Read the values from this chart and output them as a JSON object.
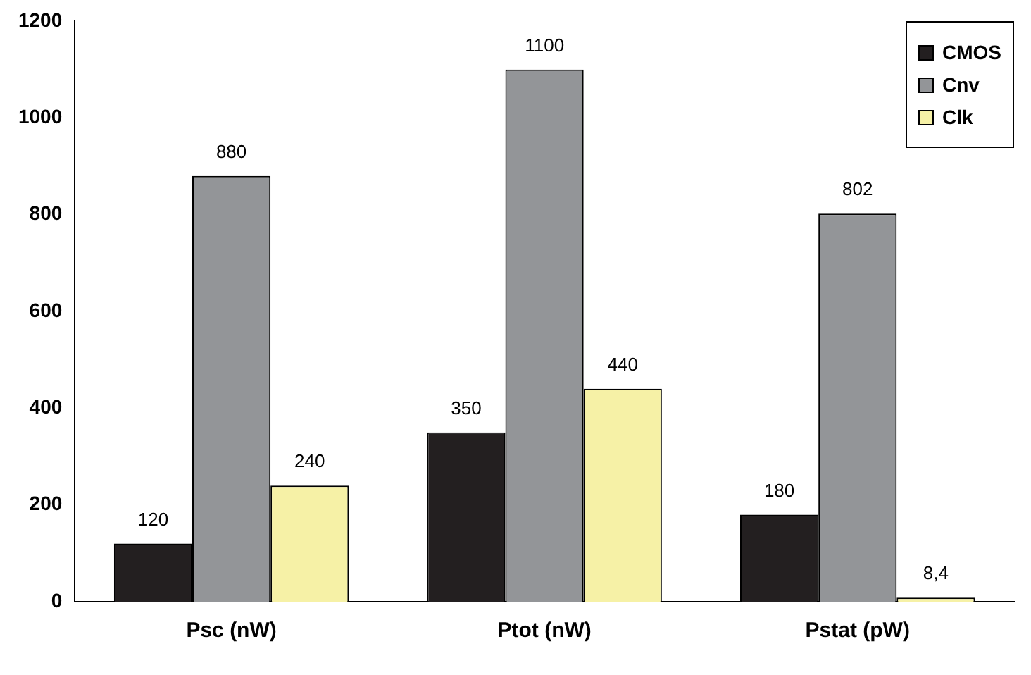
{
  "chart_data": {
    "type": "bar",
    "categories": [
      "Psc (nW)",
      "Ptot (nW)",
      "Pstat (pW)"
    ],
    "series": [
      {
        "name": "CMOS",
        "color": "#231f20",
        "values": [
          120,
          350,
          180
        ],
        "value_labels": [
          "120",
          "350",
          "180"
        ]
      },
      {
        "name": "Cnv",
        "color": "#939598",
        "values": [
          880,
          1100,
          802
        ],
        "value_labels": [
          "880",
          "1100",
          "802"
        ]
      },
      {
        "name": "Clk",
        "color": "#f6f1a6",
        "values": [
          240,
          440,
          8.4
        ],
        "value_labels": [
          "240",
          "440",
          "8,4"
        ]
      }
    ],
    "ylim": [
      0,
      1200
    ],
    "yticks": [
      0,
      200,
      400,
      600,
      800,
      1000,
      1200
    ],
    "grid": false,
    "legend": "top right"
  }
}
